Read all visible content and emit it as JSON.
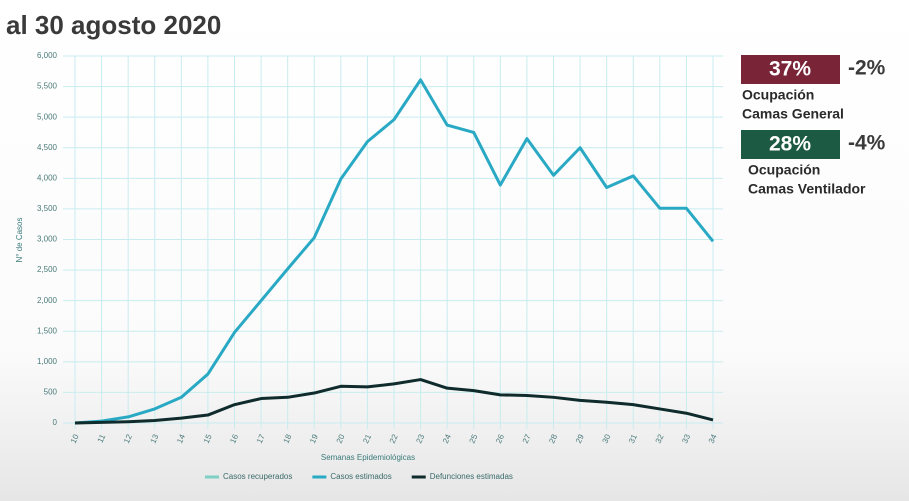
{
  "chart_data": {
    "type": "line",
    "title": "al 30 agosto 2020",
    "x_label": "Semanas Epidemiológicas",
    "y_label": "N° de Casos",
    "categories": [
      "10",
      "11",
      "12",
      "13",
      "14",
      "15",
      "16",
      "17",
      "18",
      "19",
      "20",
      "21",
      "22",
      "23",
      "24",
      "25",
      "26",
      "27",
      "28",
      "29",
      "30",
      "31",
      "32",
      "33",
      "34"
    ],
    "series": [
      {
        "name": "Casos recuperados",
        "color": "#7fcfc4",
        "values": [
          null,
          null,
          null,
          null,
          null,
          null,
          null,
          null,
          null,
          null,
          null,
          null,
          null,
          null,
          null,
          null,
          null,
          null,
          null,
          null,
          null,
          null,
          null,
          null,
          null
        ]
      },
      {
        "name": "Casos estimados",
        "color": "#2aa9c4",
        "values": [
          0,
          30,
          100,
          230,
          420,
          800,
          1480,
          2000,
          2520,
          3030,
          3990,
          4600,
          4960,
          5610,
          4870,
          4750,
          3890,
          4650,
          4050,
          4500,
          3850,
          4040,
          3510,
          3510,
          2970
        ]
      },
      {
        "name": "Defunciones estimadas",
        "color": "#0f2b2b",
        "values": [
          0,
          10,
          20,
          40,
          80,
          130,
          300,
          400,
          420,
          490,
          600,
          590,
          640,
          710,
          570,
          530,
          460,
          450,
          420,
          370,
          340,
          300,
          230,
          160,
          50
        ]
      }
    ],
    "ylim": [
      0,
      6000
    ],
    "yticks": [
      0,
      500,
      {
        "value": 1000,
        "label": "1,000"
      },
      {
        "value": 1500,
        "label": "1,500"
      },
      {
        "value": 2000,
        "label": "2,000"
      },
      {
        "value": 2500,
        "label": "2,500"
      },
      {
        "value": 3000,
        "label": "3,000"
      },
      {
        "value": 3500,
        "label": "3,500"
      },
      {
        "value": 4000,
        "label": "4,000"
      },
      {
        "value": 4500,
        "label": "4,500"
      },
      {
        "value": 5000,
        "label": "5,000"
      },
      {
        "value": 5500,
        "label": "5,500"
      },
      {
        "value": 6000,
        "label": "6,000"
      }
    ],
    "grid": true
  },
  "indicators": [
    {
      "value": "37%",
      "change": "-2%",
      "label": [
        "Ocupación",
        "Camas General"
      ],
      "color": "#7a2438"
    },
    {
      "value": "28%",
      "change": "-4%",
      "label": [
        "Ocupación",
        "Camas Ventilador"
      ],
      "color": "#1d5a44"
    }
  ]
}
